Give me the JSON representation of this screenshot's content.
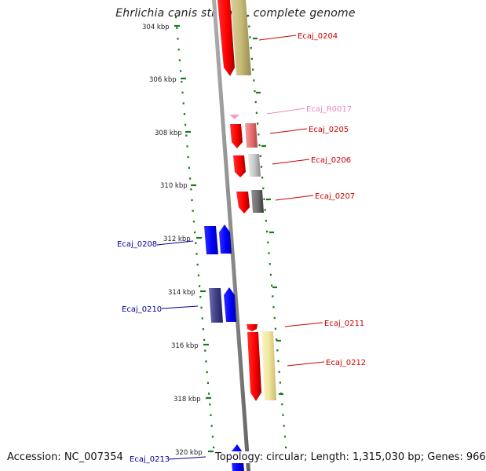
{
  "title": "Ehrlichia canis str. Jake, complete genome",
  "footer": {
    "accession": "Accession: NC_007354",
    "info": "Topology: circular; Length: 1,315,030 bp; Genes: 966"
  },
  "ticks": [
    "304 kbp",
    "306 kbp",
    "308 kbp",
    "310 kbp",
    "312 kbp",
    "314 kbp",
    "316 kbp",
    "318 kbp",
    "320 kbp"
  ],
  "genes": [
    {
      "name": "Ecaj_0204",
      "color": "#cc0000"
    },
    {
      "name": "Ecaj_R0017",
      "color": "#ee88bb"
    },
    {
      "name": "Ecaj_0205",
      "color": "#cc0000"
    },
    {
      "name": "Ecaj_0206",
      "color": "#cc0000"
    },
    {
      "name": "Ecaj_0207",
      "color": "#cc0000"
    },
    {
      "name": "Ecaj_0208",
      "color": "#000099"
    },
    {
      "name": "Ecaj_0210",
      "color": "#000099"
    },
    {
      "name": "Ecaj_0211",
      "color": "#cc0000"
    },
    {
      "name": "Ecaj_0212",
      "color": "#cc0000"
    },
    {
      "name": "Ecaj_0213",
      "color": "#000099"
    }
  ],
  "colors": {
    "forward_strand": "#ff0000",
    "reverse_strand": "#0000ff",
    "grid": "#1a7a1a",
    "backbone": "#888888"
  }
}
